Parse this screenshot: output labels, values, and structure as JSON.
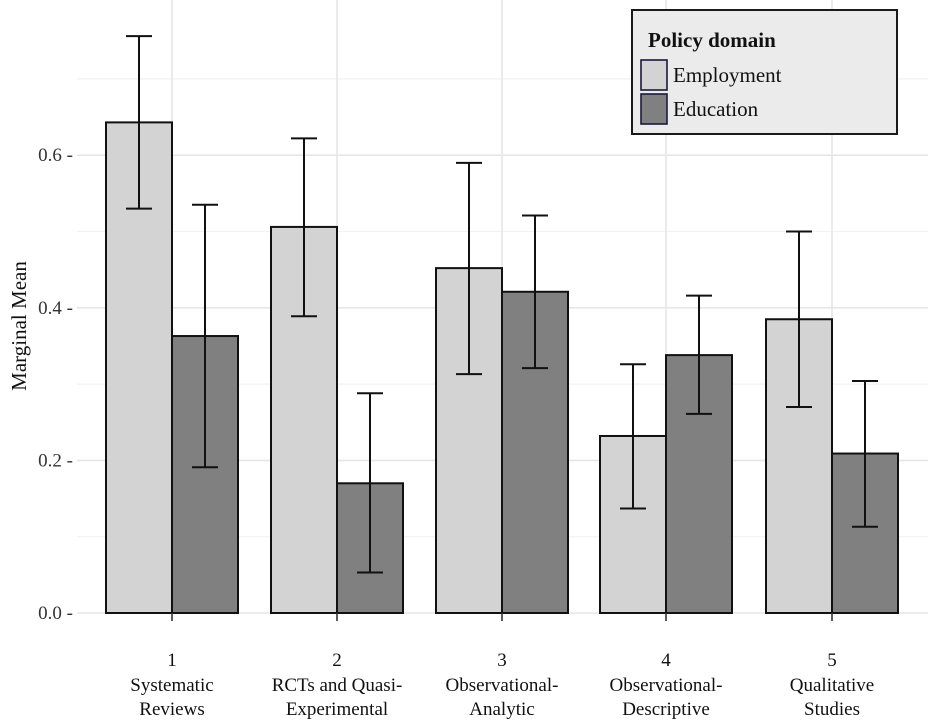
{
  "chart_data": {
    "type": "bar",
    "ylabel": "Marginal Mean",
    "xlabel": "",
    "ylim": [
      0,
      0.76
    ],
    "yticks": [
      0.0,
      0.2,
      0.4,
      0.6
    ],
    "ytick_labels": [
      "0.0 -",
      "0.2 -",
      "0.4 -",
      "0.6 -"
    ],
    "grid": true,
    "legend_position": "top-right",
    "legend_title": "Policy domain",
    "categories": [
      {
        "number": "1",
        "line1": "Systematic",
        "line2": "Reviews"
      },
      {
        "number": "2",
        "line1": "RCTs and Quasi-",
        "line2": "Experimental"
      },
      {
        "number": "3",
        "line1": "Observational-",
        "line2": "Analytic"
      },
      {
        "number": "4",
        "line1": "Observational-",
        "line2": "Descriptive"
      },
      {
        "number": "5",
        "line1": "Qualitative",
        "line2": "Studies"
      }
    ],
    "series": [
      {
        "name": "Employment",
        "color": "#d3d3d3",
        "values": [
          0.643,
          0.506,
          0.452,
          0.232,
          0.385
        ],
        "ci_low": [
          0.53,
          0.389,
          0.313,
          0.137,
          0.27
        ],
        "ci_high": [
          0.756,
          0.622,
          0.59,
          0.326,
          0.5
        ]
      },
      {
        "name": "Education",
        "color": "#808080",
        "values": [
          0.363,
          0.17,
          0.421,
          0.338,
          0.209
        ],
        "ci_low": [
          0.191,
          0.053,
          0.321,
          0.261,
          0.113
        ],
        "ci_high": [
          0.535,
          0.288,
          0.521,
          0.416,
          0.304
        ]
      }
    ]
  }
}
